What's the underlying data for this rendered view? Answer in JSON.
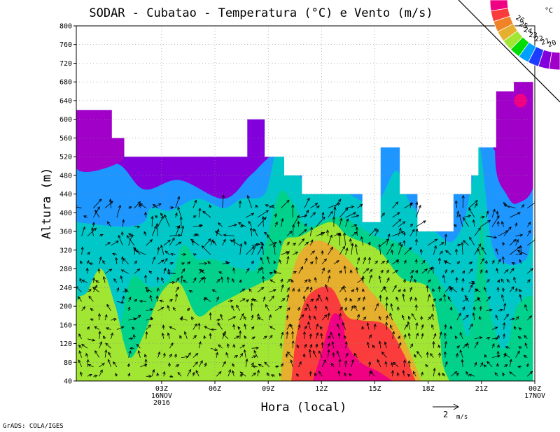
{
  "chart_data": {
    "type": "contour",
    "title": "SODAR - Cubatao - Temperatura (°C) e Vento (m/s)",
    "xlabel": "Hora (local)",
    "ylabel": "Altura (m)",
    "ylim": [
      40,
      800
    ],
    "y_ticks": [
      40,
      80,
      120,
      160,
      200,
      240,
      280,
      320,
      360,
      400,
      440,
      480,
      520,
      560,
      600,
      640,
      680,
      720,
      760,
      800
    ],
    "xlim_hours": [
      -1.8,
      24.0
    ],
    "x_ticks": [
      {
        "hour": 3,
        "label": "03Z",
        "sub1": "16NOV",
        "sub2": "2016"
      },
      {
        "hour": 6,
        "label": "06Z",
        "sub1": "",
        "sub2": ""
      },
      {
        "hour": 9,
        "label": "09Z",
        "sub1": "",
        "sub2": ""
      },
      {
        "hour": 12,
        "label": "12Z",
        "sub1": "",
        "sub2": ""
      },
      {
        "hour": 15,
        "label": "15Z",
        "sub1": "",
        "sub2": ""
      },
      {
        "hour": 18,
        "label": "18Z",
        "sub1": "",
        "sub2": ""
      },
      {
        "hour": 21,
        "label": "21Z",
        "sub1": "",
        "sub2": ""
      },
      {
        "hour": 24,
        "label": "00Z",
        "sub1": "17NOV",
        "sub2": ""
      }
    ],
    "legend": {
      "levels": [
        "20",
        "21",
        "22",
        "23",
        "24",
        "25",
        "26"
      ],
      "unit": "°C",
      "colors": [
        "#a000c8",
        "#8200dc",
        "#1e3cff",
        "#00a0ff",
        "#00dc00",
        "#a0e632",
        "#e6af2d",
        "#f08228",
        "#fa3c3c",
        "#f00082"
      ]
    },
    "color_bands": [
      {
        "range": "< 20",
        "color": "#a000c8"
      },
      {
        "range": "20-21",
        "color": "#8200dc"
      },
      {
        "range": "21-22",
        "color": "#1e96ff"
      },
      {
        "range": "22-23",
        "color": "#00c8c8"
      },
      {
        "range": "23-24",
        "color": "#00d28c"
      },
      {
        "range": "24-25",
        "color": "#a0e632"
      },
      {
        "range": "25-26",
        "color": "#e6af2d"
      },
      {
        "range": "26-27",
        "color": "#fa3c3c"
      },
      {
        "range": "> 27",
        "color": "#f00082"
      }
    ],
    "data_top_m": [
      {
        "from": -1.8,
        "to": 0.2,
        "top": 620
      },
      {
        "from": 0.2,
        "to": 0.9,
        "top": 560
      },
      {
        "from": 0.9,
        "to": 7.8,
        "top": 520
      },
      {
        "from": 7.8,
        "to": 8.8,
        "top": 600
      },
      {
        "from": 8.8,
        "to": 9.9,
        "top": 520
      },
      {
        "from": 9.9,
        "to": 10.9,
        "top": 480
      },
      {
        "from": 10.9,
        "to": 14.3,
        "top": 440
      },
      {
        "from": 14.3,
        "to": 15.3,
        "top": 380
      },
      {
        "from": 15.3,
        "to": 16.4,
        "top": 540
      },
      {
        "from": 16.4,
        "to": 17.4,
        "top": 440
      },
      {
        "from": 17.4,
        "to": 19.4,
        "top": 360
      },
      {
        "from": 19.4,
        "to": 20.4,
        "top": 440
      },
      {
        "from": 20.4,
        "to": 20.8,
        "top": 480
      },
      {
        "from": 20.8,
        "to": 21.8,
        "top": 540
      },
      {
        "from": 21.8,
        "to": 22.8,
        "top": 660
      },
      {
        "from": 22.8,
        "to": 23.9,
        "top": 680
      }
    ],
    "vector_reference": {
      "value": "2",
      "unit": "m/s"
    }
  },
  "footer": {
    "credit": "GrADS: COLA/IGES"
  }
}
